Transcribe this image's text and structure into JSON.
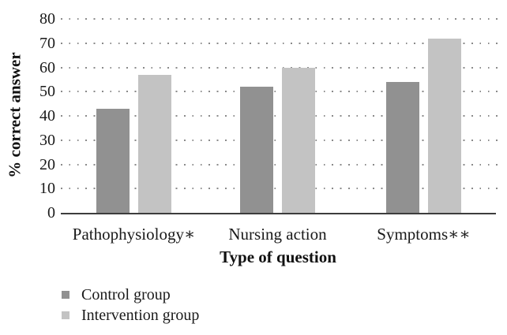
{
  "chart_data": {
    "type": "bar",
    "title": "",
    "categories": [
      "Pathophysiology∗",
      "Nursing action",
      "Symptoms∗∗"
    ],
    "series": [
      {
        "name": "Control group",
        "color": "#919191",
        "values": [
          43,
          52,
          54
        ]
      },
      {
        "name": "Intervention group",
        "color": "#c3c3c3",
        "values": [
          57,
          60,
          72
        ]
      }
    ],
    "xlabel": "Type of question",
    "ylabel": "% correct answer",
    "ylim": [
      0,
      80
    ],
    "yticks": [
      0,
      10,
      20,
      30,
      40,
      50,
      60,
      70,
      80
    ],
    "grid": "horizontal-dotted",
    "legend_position": "bottom-left"
  },
  "colors": {
    "background": "#ffffff",
    "axis_line": "#3d3d3d",
    "grid_dots": "#8a8a8a",
    "text": "#1a1a1a",
    "bar_control": "#919191",
    "bar_intervention": "#c3c3c3"
  }
}
